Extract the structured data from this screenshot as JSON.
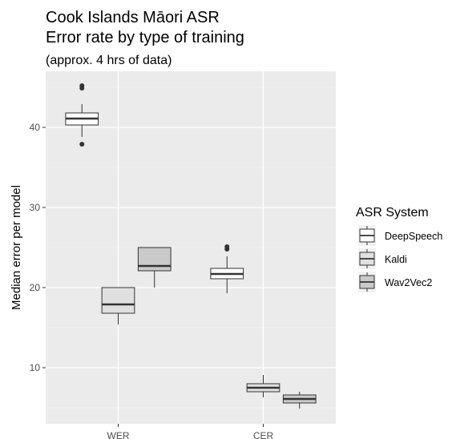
{
  "chart_data": {
    "type": "boxplot",
    "title": "Cook Islands Māori ASR",
    "title_line2": "Error rate by type of training",
    "subtitle": "(approx. 4 hrs of data)",
    "xlabel": "",
    "ylabel": "Median error per model",
    "ylim": [
      3,
      47
    ],
    "yticks": [
      10,
      20,
      30,
      40
    ],
    "grid": true,
    "categories": [
      "WER",
      "CER"
    ],
    "legend": {
      "title": "ASR System",
      "position": "right",
      "entries": [
        "DeepSpeech",
        "Kaldi",
        "Wav2Vec2"
      ]
    },
    "series": [
      {
        "name": "DeepSpeech",
        "fill": "#ffffff",
        "boxes": [
          {
            "category": "WER",
            "min": 38.8,
            "q1": 40.3,
            "median": 41.1,
            "q3": 41.8,
            "max": 42.9,
            "outliers": [
              37.9,
              44.9,
              45.2
            ]
          },
          {
            "category": "CER",
            "min": 19.3,
            "q1": 21.1,
            "median": 21.7,
            "q3": 22.4,
            "max": 23.9,
            "outliers": [
              24.8,
              25.1
            ]
          }
        ]
      },
      {
        "name": "Kaldi",
        "fill": "#e0e0e0",
        "boxes": [
          {
            "category": "WER",
            "min": 15.4,
            "q1": 16.8,
            "median": 17.9,
            "q3": 20.0,
            "max": 20.0,
            "outliers": []
          },
          {
            "category": "CER",
            "min": 6.3,
            "q1": 7.0,
            "median": 7.5,
            "q3": 8.0,
            "max": 9.1,
            "outliers": []
          }
        ]
      },
      {
        "name": "Wav2Vec2",
        "fill": "#cacaca",
        "boxes": [
          {
            "category": "WER",
            "min": 20.0,
            "q1": 22.1,
            "median": 22.7,
            "q3": 25.0,
            "max": 25.0,
            "outliers": []
          },
          {
            "category": "CER",
            "min": 4.9,
            "q1": 5.6,
            "median": 6.1,
            "q3": 6.6,
            "max": 7.0,
            "outliers": []
          }
        ]
      }
    ]
  }
}
